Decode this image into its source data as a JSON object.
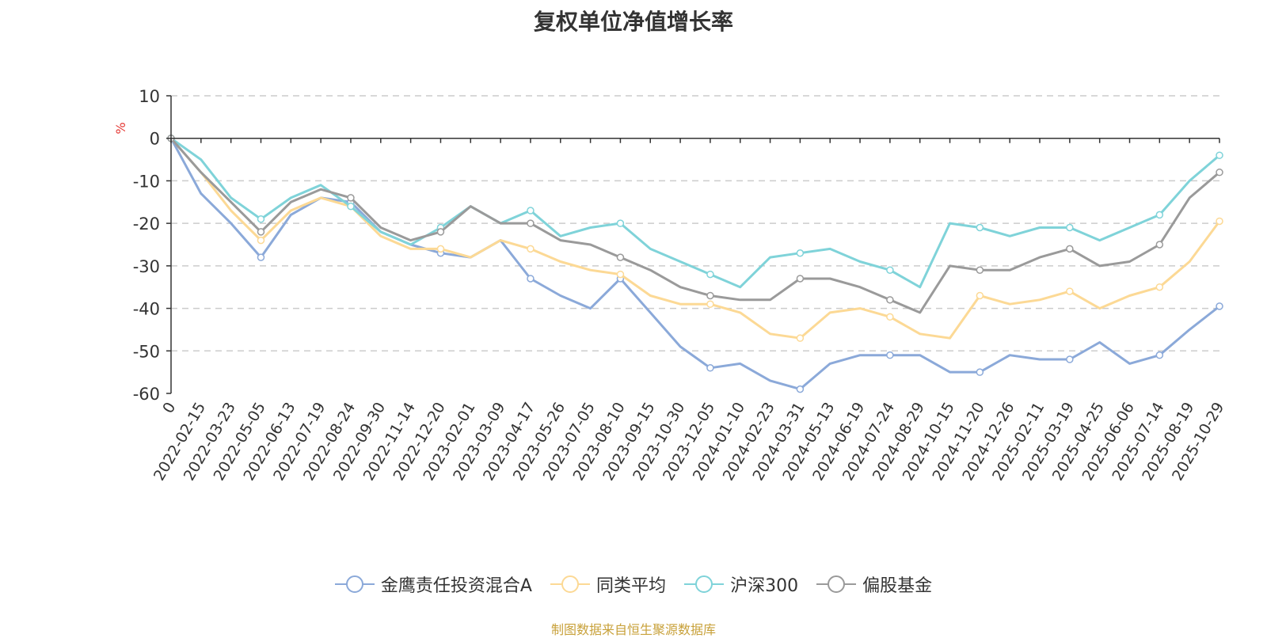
{
  "colors": {
    "s0": "#8ba9d9",
    "s1": "#fcd995",
    "s2": "#7fd3d9",
    "s3": "#9a9a9a",
    "axis_unit": "#e53935",
    "source": "#c8a13a"
  },
  "chart_data": {
    "type": "line",
    "title": "复权单位净值增长率",
    "ylabel": "%",
    "ylim": [
      -60,
      10
    ],
    "yticks": [
      10,
      0,
      -10,
      -20,
      -30,
      -40,
      -50,
      -60
    ],
    "x_first_label": "0",
    "x_tick_labels": [
      "2022-02-15",
      "2022-03-23",
      "2022-05-05",
      "2022-06-13",
      "2022-07-19",
      "2022-08-24",
      "2022-09-30",
      "2022-11-14",
      "2022-12-20",
      "2023-02-01",
      "2023-03-09",
      "2023-04-17",
      "2023-05-26",
      "2023-07-05",
      "2023-08-10",
      "2023-09-15",
      "2023-10-30",
      "2023-12-05",
      "2024-01-10",
      "2024-02-23",
      "2024-03-31",
      "2024-05-13",
      "2024-06-19",
      "2024-07-24",
      "2024-08-29",
      "2024-10-15",
      "2024-11-20",
      "2024-12-26",
      "2025-02-11",
      "2025-03-19",
      "2025-04-25",
      "2025-06-06",
      "2025-07-14",
      "2025-08-19",
      "2025-10-29"
    ],
    "x_index": [
      0,
      1,
      2,
      3,
      4,
      5,
      6,
      7,
      8,
      9,
      10,
      11,
      12,
      13,
      14,
      15,
      16,
      17,
      18,
      19,
      20,
      21,
      22,
      23,
      24,
      25,
      26,
      27,
      28,
      29,
      30,
      31,
      32,
      33,
      34,
      35
    ],
    "series": [
      {
        "name": "金鹰责任投资混合A",
        "values": [
          0,
          -13,
          -20,
          -28,
          -18,
          -14,
          -15,
          -22,
          -25,
          -27,
          -28,
          -24,
          -33,
          -37,
          -40,
          -33,
          -41,
          -49,
          -54,
          -53,
          -57,
          -59,
          -53,
          -51,
          -51,
          -51,
          -55,
          -55,
          -51,
          -52,
          -52,
          -48,
          -53,
          -51,
          -45,
          -39.5
        ]
      },
      {
        "name": "同类平均",
        "values": [
          0,
          -8,
          -17,
          -24,
          -17,
          -14,
          -16,
          -23,
          -26,
          -26,
          -28,
          -24,
          -26,
          -29,
          -31,
          -32,
          -37,
          -39,
          -39,
          -41,
          -46,
          -47,
          -41,
          -40,
          -42,
          -46,
          -47,
          -37,
          -39,
          -38,
          -36,
          -40,
          -37,
          -35,
          -29,
          -19.5
        ]
      },
      {
        "name": "沪深300",
        "values": [
          0,
          -5,
          -14,
          -19,
          -14,
          -11,
          -16,
          -22,
          -25,
          -21,
          -16,
          -20,
          -17,
          -23,
          -21,
          -20,
          -26,
          -29,
          -32,
          -35,
          -28,
          -27,
          -26,
          -29,
          -31,
          -35,
          -20,
          -21,
          -23,
          -21,
          -21,
          -24,
          -21,
          -18,
          -10,
          -4
        ]
      },
      {
        "name": "偏股基金",
        "values": [
          0,
          -8,
          -15,
          -22,
          -15,
          -12,
          -14,
          -21,
          -24,
          -22,
          -16,
          -20,
          -20,
          -24,
          -25,
          -28,
          -31,
          -35,
          -37,
          -38,
          -38,
          -33,
          -33,
          -35,
          -38,
          -41,
          -30,
          -31,
          -31,
          -28,
          -26,
          -30,
          -29,
          -25,
          -14,
          -8
        ]
      }
    ],
    "legend_position": "bottom-center"
  },
  "source_text": "制图数据来自恒生聚源数据库"
}
